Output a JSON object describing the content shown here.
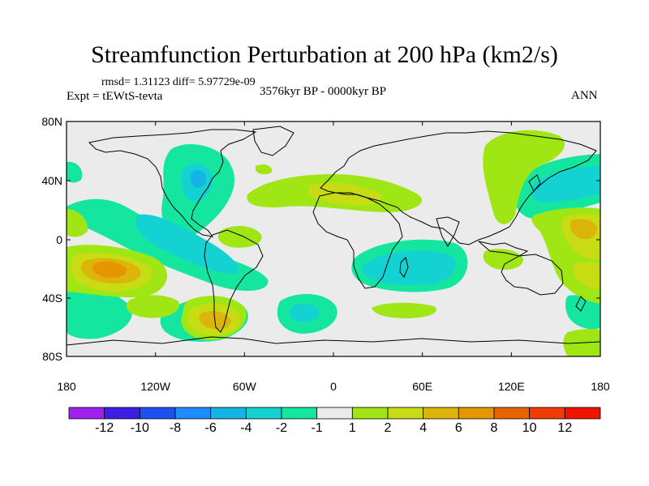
{
  "title": "Streamfunction Perturbation at 200 hPa (km2/s)",
  "stats": "rmsd= 1.31123 diff= 5.97729e-09",
  "experiment": "Expt = tEWtS-tevta",
  "period": "3576kyr BP - 0000kyr BP",
  "season": "ANN",
  "lat_ticks": [
    "80N",
    "40N",
    "0",
    "40S",
    "80S"
  ],
  "lon_ticks": [
    "180",
    "120W",
    "60W",
    "0",
    "60E",
    "120E",
    "180"
  ],
  "colorbar": {
    "colors": [
      "#a020f0",
      "#3c1ee6",
      "#1e50f0",
      "#1e8cff",
      "#14b4e6",
      "#14d2d2",
      "#14e6a0",
      "#ebebeb",
      "#a0e614",
      "#c8dc14",
      "#dcb40a",
      "#e69600",
      "#e66400",
      "#f03c00",
      "#f01400"
    ],
    "labels": [
      "-12",
      "-10",
      "-8",
      "-6",
      "-4",
      "-2",
      "-1",
      "1",
      "2",
      "4",
      "6",
      "8",
      "10",
      "12"
    ]
  },
  "map_colors": {
    "background": "#ebebeb",
    "pos1": "#a0e614",
    "pos2": "#c8dc14",
    "pos3": "#dcb40a",
    "pos4": "#e69600",
    "neg1": "#14e6a0",
    "neg2": "#14d2d2",
    "neg3": "#14b4e6"
  }
}
